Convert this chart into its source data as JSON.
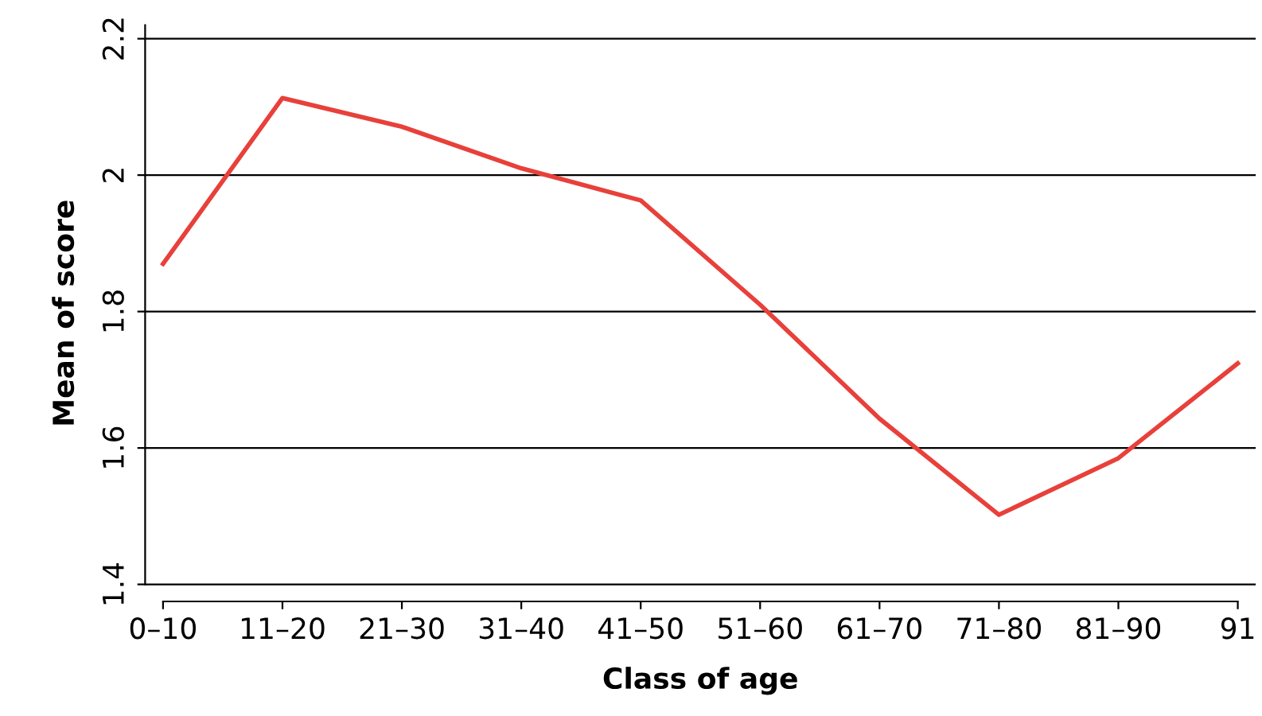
{
  "chart_data": {
    "type": "line",
    "xlabel": "Class of age",
    "ylabel": "Mean of score",
    "categories": [
      "0–10",
      "11–20",
      "21–30",
      "31–40",
      "41–50",
      "51–60",
      "61–70",
      "71–80",
      "81–90",
      "91"
    ],
    "series": [
      {
        "color": "#e8403a",
        "values": [
          1.87,
          2.113,
          2.071,
          2.01,
          1.963,
          1.81,
          1.643,
          1.502,
          1.585,
          1.724
        ]
      }
    ],
    "ylim": [
      1.375,
      2.22
    ],
    "yticks": [
      1.4,
      1.6,
      1.8,
      2,
      2.2
    ],
    "grid": "y",
    "marker": "none",
    "line_style": "solid"
  }
}
